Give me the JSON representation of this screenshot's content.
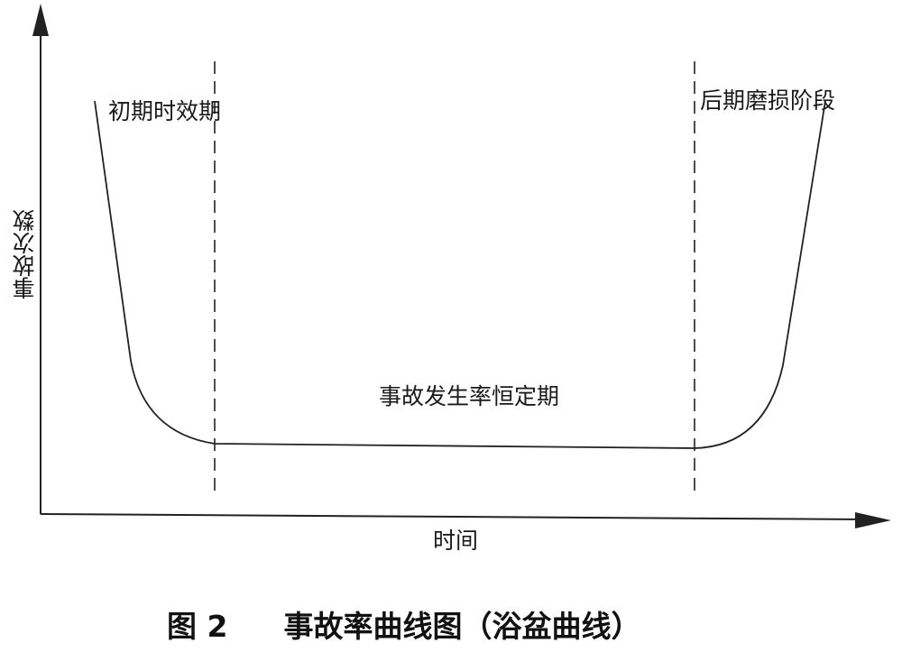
{
  "diagram": {
    "y_axis_label": "事故次数",
    "x_axis_label": "时间",
    "phase_labels": {
      "early": "初期时效期",
      "constant": "事故发生率恒定期",
      "late": "后期磨损阶段"
    },
    "caption": {
      "figure_number": "图 2",
      "title": "事故率曲线图（浴盆曲线）"
    }
  }
}
